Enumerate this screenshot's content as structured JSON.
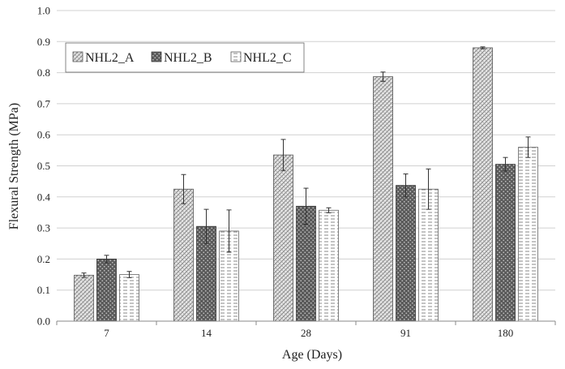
{
  "chart_data": {
    "type": "bar",
    "xlabel": "Age (Days)",
    "ylabel": "Flexural Strength (MPa)",
    "ylim": [
      0,
      1.0
    ],
    "yticks": [
      "0.0",
      "0.1",
      "0.2",
      "0.3",
      "0.4",
      "0.5",
      "0.6",
      "0.7",
      "0.8",
      "0.9",
      "1.0"
    ],
    "grid": true,
    "legend_position": "top-left",
    "categories": [
      "7",
      "14",
      "28",
      "91",
      "180"
    ],
    "series": [
      {
        "name": "NHL2_A",
        "pattern": "crosshatch",
        "values": [
          0.148,
          0.425,
          0.535,
          0.787,
          0.88
        ],
        "errors": [
          0.007,
          0.047,
          0.05,
          0.015,
          0.003
        ]
      },
      {
        "name": "NHL2_B",
        "pattern": "dark-dots",
        "values": [
          0.2,
          0.305,
          0.37,
          0.437,
          0.505
        ],
        "errors": [
          0.012,
          0.055,
          0.058,
          0.037,
          0.022
        ]
      },
      {
        "name": "NHL2_C",
        "pattern": "horizontal-dashes",
        "values": [
          0.15,
          0.29,
          0.357,
          0.425,
          0.56
        ],
        "errors": [
          0.01,
          0.068,
          0.008,
          0.065,
          0.033
        ]
      }
    ]
  }
}
